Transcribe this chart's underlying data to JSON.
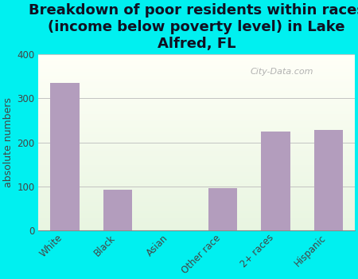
{
  "title": "Breakdown of poor residents within races\n(income below poverty level) in Lake\nAlfred, FL",
  "categories": [
    "White",
    "Black",
    "Asian",
    "Other race",
    "2+ races",
    "Hispanic"
  ],
  "values": [
    335,
    93,
    0,
    96,
    225,
    228
  ],
  "bar_color": "#b39dbd",
  "ylabel": "absolute numbers",
  "ylim": [
    0,
    400
  ],
  "yticks": [
    0,
    100,
    200,
    300,
    400
  ],
  "background_color": "#00f0f0",
  "watermark": "City-Data.com",
  "title_fontsize": 13,
  "tick_fontsize": 8.5,
  "ylabel_fontsize": 9,
  "title_color": "#111122"
}
